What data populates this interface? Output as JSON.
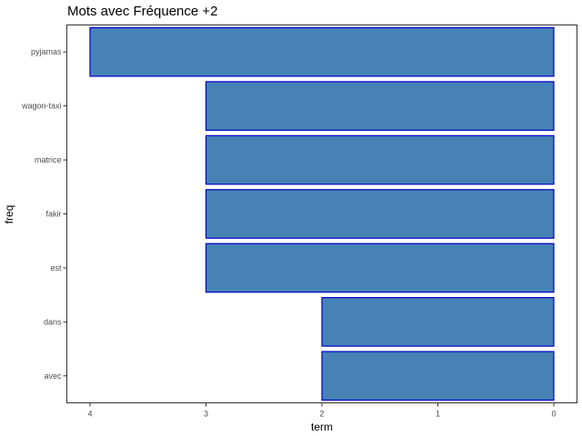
{
  "chart_data": {
    "type": "bar",
    "orientation": "horizontal",
    "title": "Mots avec Fréquence +2",
    "xlabel": "term",
    "ylabel": "freq",
    "categories": [
      "pyjamas",
      "wagon-taxi",
      "matrice",
      "fakir",
      "est",
      "dans",
      "avec"
    ],
    "values": [
      4,
      3,
      3,
      3,
      3,
      2,
      2
    ],
    "xlim": [
      4.2,
      -0.2
    ],
    "x_reversed": true,
    "x_ticks": [
      4,
      3,
      2,
      1,
      0
    ],
    "grid": false,
    "legend": "none",
    "bar_fill": "#4682b4",
    "bar_stroke": "#0000cd",
    "axis_color": "#333333",
    "tick_label_color": "#4d4d4d"
  }
}
